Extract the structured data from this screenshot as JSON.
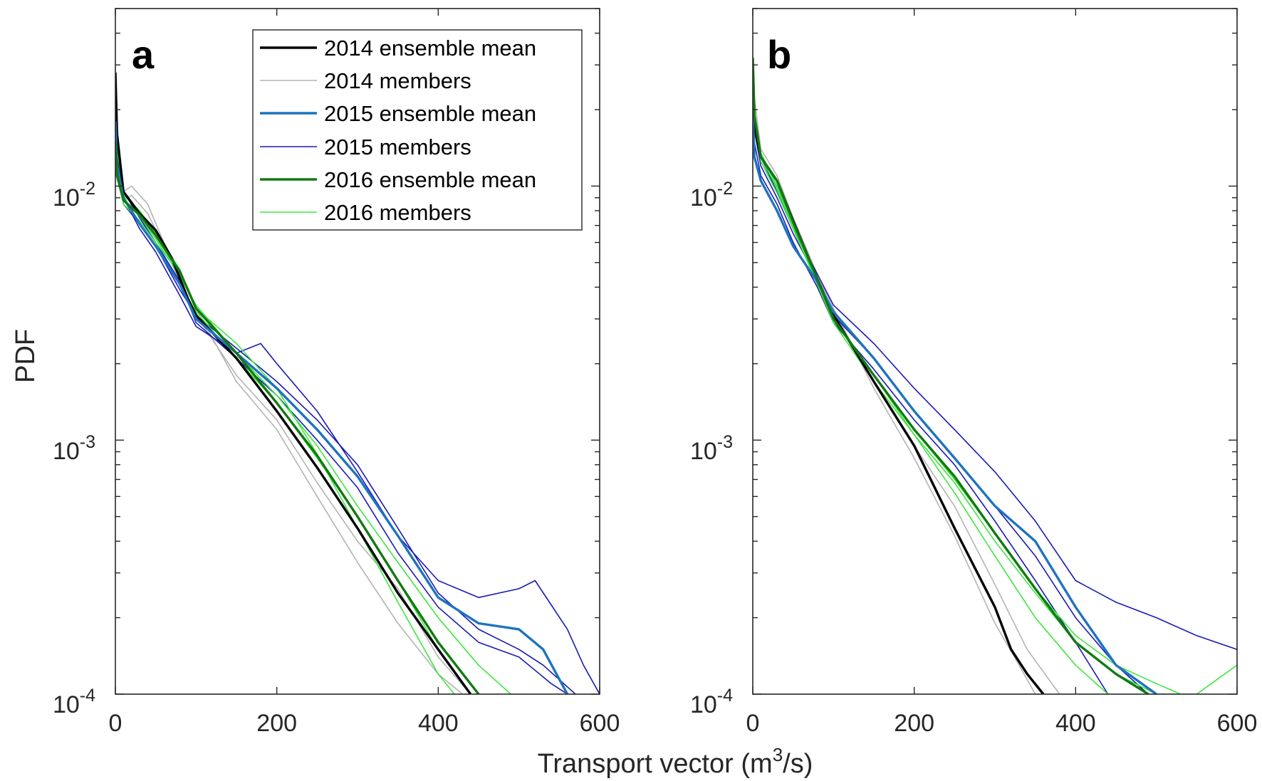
{
  "figure": {
    "xlabel": "Transport vector (m",
    "xlabel_sup": "3",
    "xlabel_end": "/s)",
    "ylabel": "PDF"
  },
  "legend": [
    {
      "label": "2014 ensemble mean",
      "color": "#000000",
      "kind": "mean"
    },
    {
      "label": "2014 members",
      "color": "#b3b3b3",
      "kind": "member"
    },
    {
      "label": "2015 ensemble mean",
      "color": "#1e73be",
      "kind": "mean"
    },
    {
      "label": "2015 members",
      "color": "#1a1ab8",
      "kind": "member"
    },
    {
      "label": "2016 ensemble mean",
      "color": "#117a11",
      "kind": "mean"
    },
    {
      "label": "2016 members",
      "color": "#3ee63e",
      "kind": "member"
    }
  ],
  "chart_data": [
    {
      "type": "line",
      "panel_label": "a",
      "title": "",
      "xlabel": "Transport vector (m^3/s)",
      "ylabel": "PDF",
      "xlim": [
        0,
        600
      ],
      "ylim": [
        0.0001,
        0.05
      ],
      "yscale": "log",
      "x_ticks": [
        "0",
        "200",
        "400",
        "600"
      ],
      "y_ticks": [
        {
          "base": "10",
          "exp": "-2",
          "value": 0.01
        },
        {
          "base": "10",
          "exp": "-3",
          "value": 0.001
        },
        {
          "base": "10",
          "exp": "-4",
          "value": 0.0001
        }
      ],
      "legend_position": "top-right",
      "series": [
        {
          "name": "2014 members",
          "color": "#b3b3b3",
          "width": 1.6,
          "x": [
            0,
            10,
            20,
            40,
            60,
            80,
            100,
            150,
            200,
            250,
            300,
            350,
            400,
            430
          ],
          "y": [
            0.02,
            0.0095,
            0.01,
            0.0085,
            0.006,
            0.0045,
            0.0033,
            0.0017,
            0.0011,
            0.0006,
            0.00033,
            0.00019,
            0.00012,
            0.0001
          ]
        },
        {
          "name": "2014 members",
          "color": "#b3b3b3",
          "width": 1.6,
          "x": [
            0,
            10,
            20,
            40,
            60,
            80,
            100,
            150,
            200,
            250,
            300,
            350,
            400,
            440
          ],
          "y": [
            0.018,
            0.0088,
            0.0092,
            0.0078,
            0.0058,
            0.0042,
            0.0031,
            0.0018,
            0.0012,
            0.00068,
            0.0004,
            0.00026,
            0.00014,
            0.0001
          ]
        },
        {
          "name": "2015 members",
          "color": "#1a1ab8",
          "width": 1.6,
          "x": [
            0,
            10,
            30,
            50,
            80,
            100,
            150,
            180,
            200,
            250,
            300,
            350,
            400,
            450,
            500,
            520,
            560,
            580,
            600
          ],
          "y": [
            0.015,
            0.009,
            0.0068,
            0.0055,
            0.0037,
            0.0028,
            0.0022,
            0.0024,
            0.002,
            0.0013,
            0.00075,
            0.00042,
            0.00028,
            0.00024,
            0.00026,
            0.00028,
            0.00018,
            0.00013,
            0.0001
          ]
        },
        {
          "name": "2015 members",
          "color": "#1a1ab8",
          "width": 1.6,
          "x": [
            0,
            10,
            30,
            50,
            80,
            100,
            150,
            200,
            250,
            300,
            350,
            400,
            450,
            500,
            540,
            560
          ],
          "y": [
            0.019,
            0.0095,
            0.0075,
            0.006,
            0.0042,
            0.0029,
            0.0021,
            0.0015,
            0.001,
            0.00065,
            0.00036,
            0.00022,
            0.00016,
            0.00014,
            0.00011,
            0.0001
          ]
        },
        {
          "name": "2015 members",
          "color": "#1a1ab8",
          "width": 1.6,
          "x": [
            0,
            10,
            30,
            50,
            80,
            100,
            150,
            200,
            250,
            300,
            350,
            400,
            450,
            500,
            530,
            570
          ],
          "y": [
            0.014,
            0.0085,
            0.0071,
            0.0058,
            0.0039,
            0.0031,
            0.0023,
            0.0017,
            0.0012,
            0.0008,
            0.00045,
            0.00025,
            0.00018,
            0.00015,
            0.00013,
            0.0001
          ]
        },
        {
          "name": "2016 members",
          "color": "#3ee63e",
          "width": 1.6,
          "x": [
            0,
            10,
            30,
            50,
            80,
            100,
            150,
            200,
            250,
            300,
            350,
            400,
            440
          ],
          "y": [
            0.016,
            0.0092,
            0.008,
            0.0065,
            0.0047,
            0.0032,
            0.0021,
            0.0014,
            0.00085,
            0.0005,
            0.00028,
            0.00015,
            0.0001
          ]
        },
        {
          "name": "2016 members",
          "color": "#3ee63e",
          "width": 1.6,
          "x": [
            0,
            10,
            30,
            50,
            80,
            100,
            150,
            200,
            250,
            300,
            350,
            400,
            450,
            490
          ],
          "y": [
            0.013,
            0.0088,
            0.0076,
            0.0062,
            0.0044,
            0.0034,
            0.0022,
            0.0015,
            0.00095,
            0.00055,
            0.00033,
            0.0002,
            0.00013,
            0.0001
          ]
        },
        {
          "name": "2016 members",
          "color": "#3ee63e",
          "width": 1.6,
          "x": [
            0,
            10,
            30,
            50,
            80,
            100,
            150,
            200,
            250,
            300,
            350,
            400,
            420
          ],
          "y": [
            0.012,
            0.0085,
            0.0073,
            0.006,
            0.0045,
            0.0033,
            0.0024,
            0.0016,
            0.00088,
            0.00045,
            0.00023,
            0.00012,
            0.0001
          ]
        },
        {
          "name": "2014 ensemble mean",
          "color": "#000000",
          "width": 3.4,
          "x": [
            0,
            2,
            10,
            30,
            50,
            70,
            90,
            100,
            150,
            200,
            250,
            300,
            350,
            400,
            440
          ],
          "y": [
            0.028,
            0.016,
            0.0095,
            0.0078,
            0.0067,
            0.0052,
            0.0036,
            0.0031,
            0.0021,
            0.0013,
            0.00078,
            0.00045,
            0.00025,
            0.00015,
            0.0001
          ]
        },
        {
          "name": "2015 ensemble mean",
          "color": "#1e73be",
          "width": 3.4,
          "x": [
            0,
            2,
            10,
            30,
            50,
            80,
            100,
            150,
            200,
            250,
            300,
            350,
            400,
            450,
            500,
            530,
            560
          ],
          "y": [
            0.018,
            0.012,
            0.009,
            0.0071,
            0.0058,
            0.0041,
            0.003,
            0.0022,
            0.0016,
            0.0011,
            0.00072,
            0.00042,
            0.00024,
            0.00019,
            0.00018,
            0.00015,
            0.0001
          ]
        },
        {
          "name": "2016 ensemble mean",
          "color": "#117a11",
          "width": 3.4,
          "x": [
            0,
            2,
            10,
            30,
            50,
            80,
            100,
            150,
            200,
            250,
            300,
            350,
            400,
            450
          ],
          "y": [
            0.015,
            0.011,
            0.0088,
            0.0077,
            0.0064,
            0.0046,
            0.0033,
            0.0022,
            0.0014,
            0.00087,
            0.0005,
            0.00028,
            0.00016,
            0.0001
          ]
        }
      ]
    },
    {
      "type": "line",
      "panel_label": "b",
      "title": "",
      "xlabel": "Transport vector (m^3/s)",
      "ylabel": "PDF",
      "xlim": [
        0,
        600
      ],
      "ylim": [
        0.0001,
        0.05
      ],
      "yscale": "log",
      "x_ticks": [
        "0",
        "200",
        "400",
        "600"
      ],
      "y_ticks": [
        {
          "base": "10",
          "exp": "-2",
          "value": 0.01
        },
        {
          "base": "10",
          "exp": "-3",
          "value": 0.001
        },
        {
          "base": "10",
          "exp": "-4",
          "value": 0.0001
        }
      ],
      "series": [
        {
          "name": "2014 members",
          "color": "#b3b3b3",
          "width": 1.6,
          "x": [
            0,
            10,
            30,
            50,
            80,
            100,
            150,
            200,
            250,
            300,
            330,
            350
          ],
          "y": [
            0.025,
            0.014,
            0.011,
            0.0075,
            0.0045,
            0.0033,
            0.0016,
            0.00085,
            0.00042,
            0.00019,
            0.00013,
            0.0001
          ]
        },
        {
          "name": "2014 members",
          "color": "#b3b3b3",
          "width": 1.6,
          "x": [
            0,
            10,
            30,
            50,
            80,
            100,
            150,
            200,
            250,
            300,
            340,
            380
          ],
          "y": [
            0.022,
            0.013,
            0.0105,
            0.0072,
            0.0044,
            0.0032,
            0.0017,
            0.00095,
            0.00055,
            0.00027,
            0.00015,
            0.0001
          ]
        },
        {
          "name": "2015 members",
          "color": "#1a1ab8",
          "width": 1.6,
          "x": [
            0,
            10,
            30,
            50,
            80,
            100,
            150,
            200,
            250,
            300,
            350,
            400,
            450,
            500,
            550,
            600
          ],
          "y": [
            0.02,
            0.013,
            0.0095,
            0.0068,
            0.0045,
            0.0034,
            0.0024,
            0.0016,
            0.0011,
            0.00075,
            0.00048,
            0.00028,
            0.00023,
            0.0002,
            0.00017,
            0.00015
          ]
        },
        {
          "name": "2015 members",
          "color": "#1a1ab8",
          "width": 1.6,
          "x": [
            0,
            10,
            30,
            50,
            80,
            100,
            150,
            200,
            250,
            300,
            350,
            400,
            450,
            490
          ],
          "y": [
            0.018,
            0.012,
            0.009,
            0.0065,
            0.0043,
            0.0031,
            0.0021,
            0.0013,
            0.00085,
            0.00055,
            0.00035,
            0.0002,
            0.00013,
            0.0001
          ]
        },
        {
          "name": "2015 members",
          "color": "#1a1ab8",
          "width": 1.6,
          "x": [
            0,
            10,
            30,
            50,
            80,
            100,
            150,
            200,
            250,
            300,
            350,
            400,
            440
          ],
          "y": [
            0.016,
            0.011,
            0.0085,
            0.006,
            0.004,
            0.0029,
            0.0019,
            0.0012,
            0.0008,
            0.00048,
            0.00028,
            0.00016,
            0.0001
          ]
        },
        {
          "name": "2016 members",
          "color": "#3ee63e",
          "width": 1.6,
          "x": [
            0,
            10,
            30,
            50,
            80,
            100,
            150,
            200,
            250,
            300,
            350,
            400,
            450,
            500,
            530
          ],
          "y": [
            0.02,
            0.013,
            0.0098,
            0.007,
            0.0042,
            0.003,
            0.0018,
            0.0011,
            0.0007,
            0.00043,
            0.00026,
            0.00017,
            0.00013,
            0.00011,
            0.0001
          ]
        },
        {
          "name": "2016 members",
          "color": "#3ee63e",
          "width": 1.6,
          "x": [
            0,
            10,
            30,
            50,
            80,
            100,
            150,
            200,
            250,
            300,
            350,
            400,
            450,
            500,
            550,
            600
          ],
          "y": [
            0.019,
            0.0125,
            0.0094,
            0.0068,
            0.0041,
            0.0029,
            0.0017,
            0.00105,
            0.00068,
            0.0004,
            0.00025,
            0.00016,
            0.00012,
            0.0001,
            0.0001,
            0.00013
          ]
        },
        {
          "name": "2016 members",
          "color": "#3ee63e",
          "width": 1.6,
          "x": [
            0,
            10,
            30,
            50,
            80,
            100,
            150,
            200,
            250,
            300,
            350,
            400,
            440
          ],
          "y": [
            0.021,
            0.0135,
            0.01,
            0.0072,
            0.0043,
            0.003,
            0.0018,
            0.00105,
            0.00062,
            0.00035,
            0.0002,
            0.00013,
            0.0001
          ]
        },
        {
          "name": "2014 ensemble mean",
          "color": "#000000",
          "width": 3.4,
          "x": [
            0,
            2,
            10,
            30,
            50,
            80,
            100,
            150,
            200,
            250,
            300,
            320,
            340,
            360
          ],
          "y": [
            0.03,
            0.017,
            0.013,
            0.0105,
            0.0073,
            0.0043,
            0.0031,
            0.0017,
            0.00095,
            0.00045,
            0.00022,
            0.00015,
            0.00012,
            0.0001
          ]
        },
        {
          "name": "2015 ensemble mean",
          "color": "#1e73be",
          "width": 3.4,
          "x": [
            0,
            2,
            10,
            30,
            50,
            80,
            100,
            150,
            200,
            250,
            300,
            350,
            400,
            450,
            500
          ],
          "y": [
            0.019,
            0.013,
            0.0105,
            0.008,
            0.0058,
            0.0042,
            0.0032,
            0.0021,
            0.0013,
            0.00085,
            0.00055,
            0.0004,
            0.00022,
            0.00013,
            0.0001
          ]
        },
        {
          "name": "2016 ensemble mean",
          "color": "#117a11",
          "width": 3.4,
          "x": [
            0,
            2,
            10,
            30,
            50,
            80,
            100,
            150,
            200,
            250,
            300,
            350,
            400,
            450,
            490
          ],
          "y": [
            0.032,
            0.019,
            0.013,
            0.0105,
            0.0072,
            0.0043,
            0.003,
            0.0018,
            0.0011,
            0.00072,
            0.00043,
            0.00026,
            0.00016,
            0.00012,
            0.0001
          ]
        }
      ]
    }
  ]
}
